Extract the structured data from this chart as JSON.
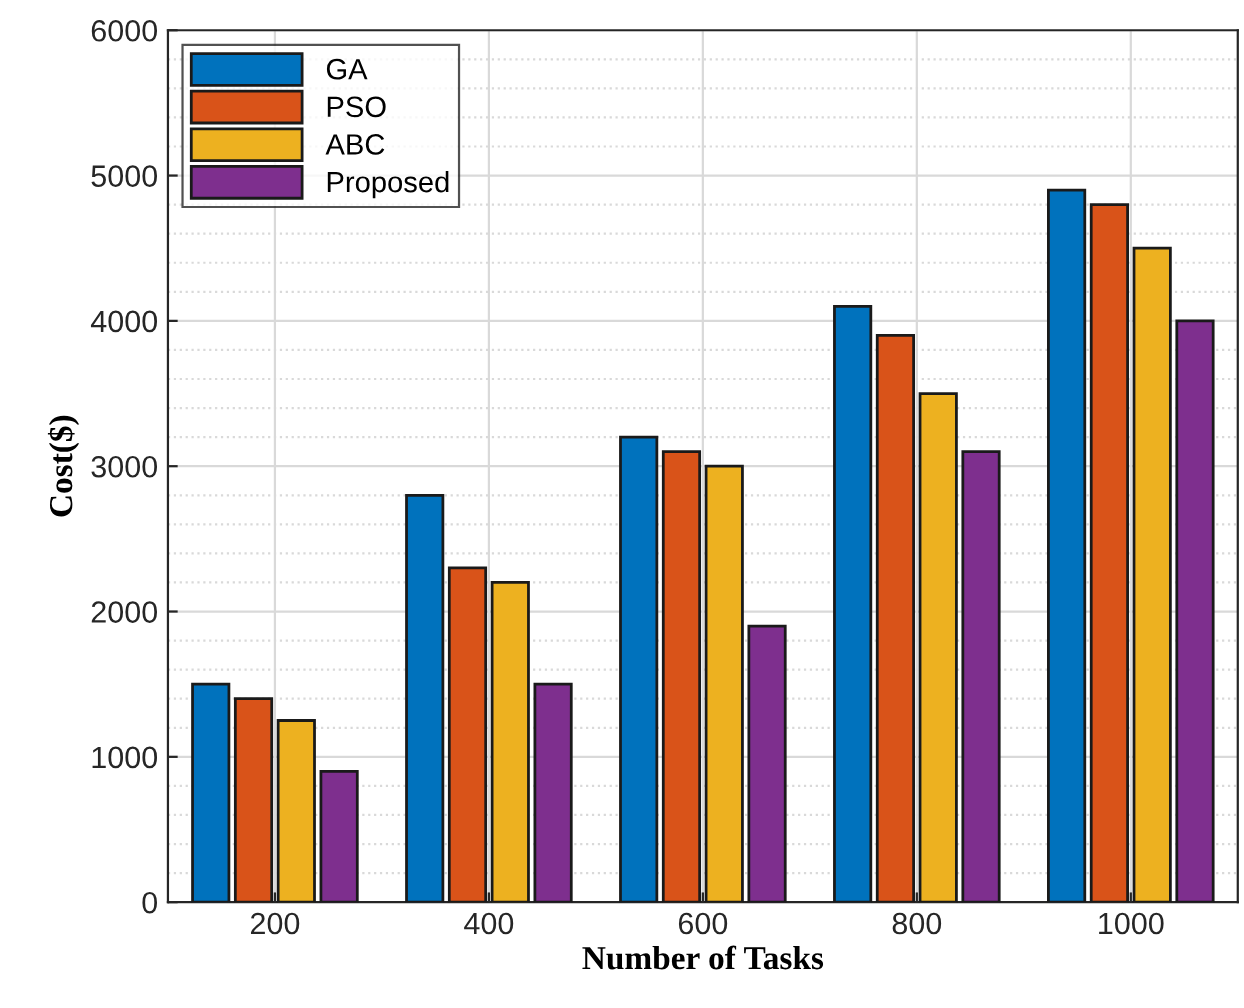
{
  "chart_data": {
    "type": "bar",
    "xlabel": "Number of Tasks",
    "ylabel": "Cost($)",
    "categories": [
      "200",
      "400",
      "600",
      "800",
      "1000"
    ],
    "series": [
      {
        "name": "GA",
        "color": "#0072bd",
        "values": [
          1500,
          2800,
          3200,
          4100,
          4900
        ]
      },
      {
        "name": "PSO",
        "color": "#d95319",
        "values": [
          1400,
          2300,
          3100,
          3900,
          4800
        ]
      },
      {
        "name": "ABC",
        "color": "#edb120",
        "values": [
          1250,
          2200,
          3000,
          3500,
          4500
        ]
      },
      {
        "name": "Proposed",
        "color": "#7e2f8e",
        "values": [
          900,
          1500,
          1900,
          3100,
          4000
        ]
      }
    ],
    "ylim": [
      0,
      6000
    ],
    "yticks": [
      0,
      1000,
      2000,
      3000,
      4000,
      5000,
      6000
    ],
    "grid": true,
    "legend": "top left"
  }
}
